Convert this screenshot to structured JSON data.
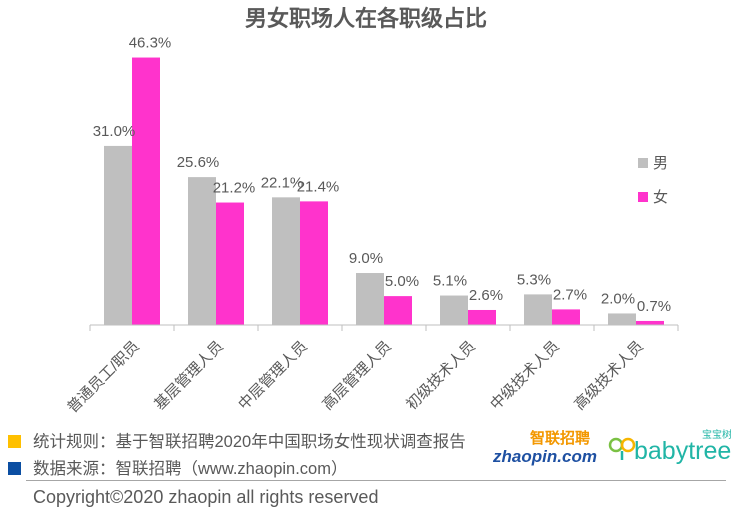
{
  "chart_data": {
    "type": "bar",
    "title": "男女职场人在各职级占比",
    "categories": [
      "普通员工/职员",
      "基层管理人员",
      "中层管理人员",
      "高层管理人员",
      "初级技术人员",
      "中级技术人员",
      "高级技术人员"
    ],
    "series": [
      {
        "name": "男",
        "values": [
          31.0,
          25.6,
          22.1,
          9.0,
          5.1,
          5.3,
          2.0
        ],
        "color": "#bfbfbf"
      },
      {
        "name": "女",
        "values": [
          46.3,
          21.2,
          21.4,
          5.0,
          2.6,
          2.7,
          0.7
        ],
        "color": "#ff33cc"
      }
    ],
    "value_suffix": "%",
    "ylim": [
      0,
      50
    ],
    "legend_position": "right",
    "grid": false
  },
  "notes": {
    "rule_label": "统计规则：基于智联招聘2020年中国职场女性现状调查报告",
    "source_label": "数据来源：智联招聘（www.zhaopin.com）",
    "rule_color": "#ffc000",
    "source_color": "#0b4ea2"
  },
  "logos": {
    "zhaopin_top": "智联招聘",
    "zhaopin_bottom": "zhaopin.com",
    "babytree_top": "宝宝树",
    "babytree_bottom": "babytree"
  },
  "copyright": "Copyright©2020 zhaopin all rights reserved"
}
